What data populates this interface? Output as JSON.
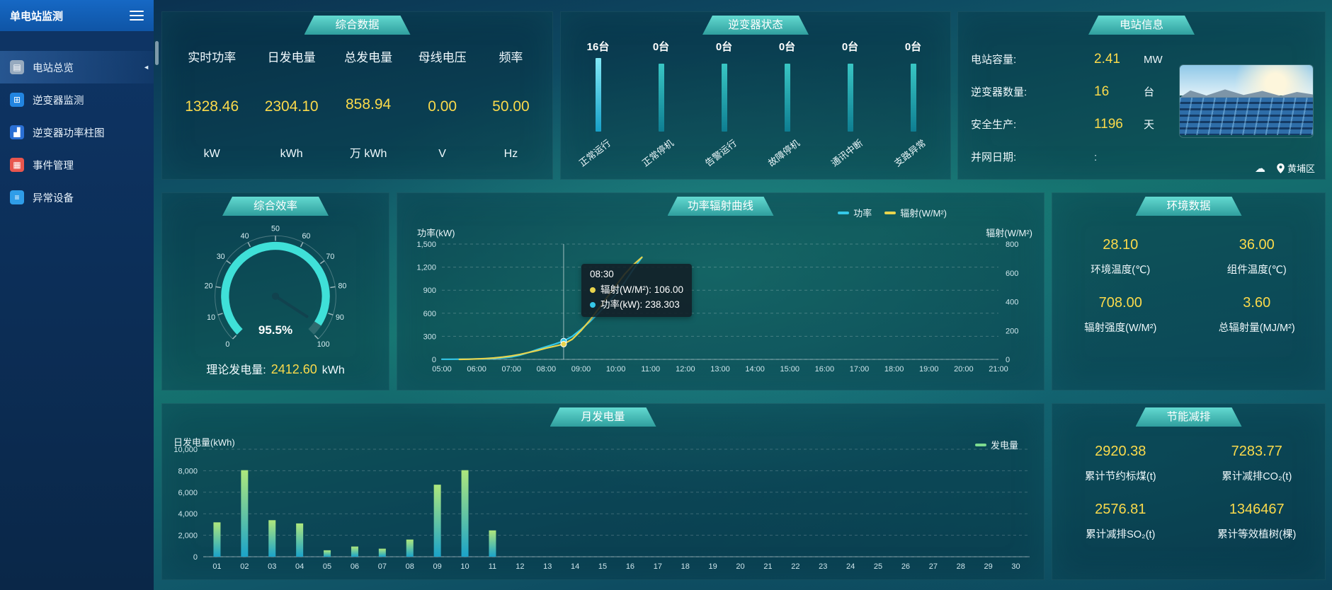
{
  "app": {
    "title": "单电站监测"
  },
  "sidebar": {
    "items": [
      {
        "label": "电站总览",
        "icon": "station-overview",
        "active": true
      },
      {
        "label": "逆变器监测",
        "icon": "inverter-monitor",
        "active": false
      },
      {
        "label": "逆变器功率柱图",
        "icon": "inverter-power-bars",
        "active": false
      },
      {
        "label": "事件管理",
        "icon": "event-management",
        "active": false
      },
      {
        "label": "异常设备",
        "icon": "abnormal-devices",
        "active": false
      }
    ]
  },
  "panels": {
    "overview": {
      "title": "综合数据",
      "metrics": [
        {
          "label": "实时功率",
          "value": "1328.46",
          "unit": "kW"
        },
        {
          "label": "日发电量",
          "value": "2304.10",
          "unit": "kWh"
        },
        {
          "label": "总发电量",
          "value": "858.94",
          "unit": "万 kWh"
        },
        {
          "label": "母线电压",
          "value": "0.00",
          "unit": "V"
        },
        {
          "label": "频率",
          "value": "50.00",
          "unit": "Hz"
        }
      ]
    },
    "inverter_status": {
      "title": "逆变器状态",
      "items": [
        {
          "count": "16台",
          "label": "正常运行"
        },
        {
          "count": "0台",
          "label": "正常停机"
        },
        {
          "count": "0台",
          "label": "告警运行"
        },
        {
          "count": "0台",
          "label": "故障停机"
        },
        {
          "count": "0台",
          "label": "通讯中断"
        },
        {
          "count": "0台",
          "label": "支路异常"
        }
      ]
    },
    "station_info": {
      "title": "电站信息",
      "rows": [
        {
          "label": "电站容量:",
          "value": "2.41",
          "unit": "MW"
        },
        {
          "label": "逆变器数量:",
          "value": "16",
          "unit": "台"
        },
        {
          "label": "安全生产:",
          "value": "1196",
          "unit": "天"
        },
        {
          "label": "并网日期: ",
          "value": ":",
          "unit": ""
        }
      ],
      "location": "黄埔区"
    },
    "efficiency": {
      "title": "综合效率",
      "theory_label": "理论发电量:",
      "theory_value": "2412.60",
      "theory_unit": "kWh"
    },
    "environment": {
      "title": "环境数据",
      "cells": [
        {
          "value": "28.10",
          "label": "环境温度(℃)"
        },
        {
          "value": "36.00",
          "label": "组件温度(℃)"
        },
        {
          "value": "708.00",
          "label": "辐射强度(W/M²)"
        },
        {
          "value": "3.60",
          "label": "总辐射量(MJ/M²)"
        }
      ]
    },
    "emission": {
      "title": "节能减排",
      "cells": [
        {
          "value": "2920.38",
          "label": "累计节约标煤(t)"
        },
        {
          "value": "7283.77",
          "label": "累计减排CO₂(t)"
        },
        {
          "value": "2576.81",
          "label": "累计减排SO₂(t)"
        },
        {
          "value": "1346467",
          "label": "累计等效植树(棵)"
        }
      ]
    }
  },
  "colors": {
    "value_yellow": "#fbda4b",
    "power_line": "#35c8e8",
    "radiation_line": "#e8d44d",
    "bar_top": "#aee77c",
    "bar_bottom": "#1ba3c9",
    "gauge_arc": "#3fe0d8"
  },
  "chart_data": [
    {
      "id": "power-radiation",
      "type": "line",
      "title": "功率辐射曲线",
      "x_min": 5,
      "x_max": 21,
      "x_labels": [
        "05:00",
        "06:00",
        "07:00",
        "08:00",
        "09:00",
        "10:00",
        "11:00",
        "12:00",
        "13:00",
        "14:00",
        "15:00",
        "16:00",
        "17:00",
        "18:00",
        "19:00",
        "20:00",
        "21:00"
      ],
      "left_axis": {
        "label": "功率(kW)",
        "min": 0,
        "max": 1500,
        "ticks": [
          0,
          300,
          600,
          900,
          1200,
          1500
        ]
      },
      "right_axis": {
        "label": "辐射(W/M²)",
        "min": 0,
        "max": 800,
        "ticks": [
          0,
          200,
          400,
          600,
          800
        ]
      },
      "legend": [
        {
          "name": "功率",
          "color": "#35c8e8"
        },
        {
          "name": "辐射(W/M²)",
          "color": "#e8d44d"
        }
      ],
      "series": [
        {
          "name": "功率",
          "axis": "left",
          "color": "#35c8e8",
          "x": [
            5,
            5.25,
            5.5,
            5.75,
            6,
            6.25,
            6.5,
            6.75,
            7,
            7.25,
            7.5,
            7.75,
            8,
            8.25,
            8.5,
            8.75,
            9,
            9.25,
            9.5,
            9.75,
            10,
            10.25,
            10.5,
            10.75
          ],
          "y": [
            2,
            2,
            3,
            4,
            6,
            8,
            12,
            20,
            32,
            55,
            90,
            130,
            165,
            200,
            238.3,
            300,
            390,
            490,
            600,
            720,
            850,
            1000,
            1170,
            1328.46
          ]
        },
        {
          "name": "辐射(W/M²)",
          "axis": "right",
          "color": "#e8d44d",
          "x": [
            5.5,
            5.75,
            6,
            6.25,
            6.5,
            6.75,
            7,
            7.25,
            7.5,
            7.75,
            8,
            8.25,
            8.5,
            8.75,
            9,
            9.25,
            9.5,
            9.75,
            10,
            10.25,
            10.5,
            10.75
          ],
          "y": [
            0,
            1,
            3,
            6,
            10,
            16,
            24,
            35,
            48,
            62,
            78,
            92,
            106,
            140,
            200,
            270,
            350,
            430,
            510,
            590,
            655,
            708
          ]
        }
      ],
      "pointer": {
        "x": 8.5,
        "time": "08:30",
        "rows": [
          {
            "series": "辐射(W/M²)",
            "text": "辐射(W/M²): 106.00",
            "color": "#e8d44d"
          },
          {
            "series": "功率(kW)",
            "text": "功率(kW): 238.303",
            "color": "#35c8e8"
          }
        ]
      }
    },
    {
      "id": "monthly-energy",
      "type": "bar",
      "title": "月发电量",
      "ylabel": "日发电量(kWh)",
      "categories": [
        "01",
        "02",
        "03",
        "04",
        "05",
        "06",
        "07",
        "08",
        "09",
        "10",
        "11",
        "12",
        "13",
        "14",
        "15",
        "16",
        "17",
        "18",
        "19",
        "20",
        "21",
        "22",
        "23",
        "24",
        "25",
        "26",
        "27",
        "28",
        "29",
        "30"
      ],
      "values": [
        3200,
        8050,
        3400,
        3100,
        600,
        950,
        750,
        1600,
        6700,
        8050,
        2450,
        0,
        0,
        0,
        0,
        0,
        0,
        0,
        0,
        0,
        0,
        0,
        0,
        0,
        0,
        0,
        0,
        0,
        0,
        0
      ],
      "ylim": [
        0,
        10000
      ],
      "yticks": [
        0,
        2000,
        4000,
        6000,
        8000,
        10000
      ],
      "legend": [
        {
          "name": "发电量",
          "color": "#7ddb8f"
        }
      ],
      "bar_gradient": [
        "#aee77c",
        "#1ba3c9"
      ]
    },
    {
      "id": "efficiency-gauge",
      "type": "gauge",
      "min": 0,
      "max": 100,
      "tick_step": 10,
      "value": 95.5,
      "display": "95.5%"
    },
    {
      "id": "inverter-status",
      "type": "bar",
      "categories": [
        "正常运行",
        "正常停机",
        "告警运行",
        "故障停机",
        "通讯中断",
        "支路异常"
      ],
      "values": [
        16,
        0,
        0,
        0,
        0,
        0
      ]
    }
  ]
}
